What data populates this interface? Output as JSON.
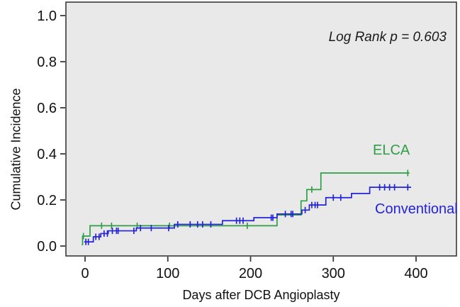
{
  "chart_data": {
    "type": "line",
    "subtype": "kaplan-meier-cumulative-incidence-step",
    "title": "",
    "annotation": "Log Rank p = 0.603",
    "xlabel": "Days after DCB Angioplasty",
    "ylabel": "Cumulative Incidence",
    "x_ticks": [
      0,
      100,
      200,
      300,
      400
    ],
    "y_ticks": [
      "0.0",
      "0.2",
      "0.4",
      "0.6",
      "0.8",
      "1.0"
    ],
    "xlim": [
      -23,
      449
    ],
    "ylim": [
      -0.043,
      1.058
    ],
    "grid": false,
    "legend_position": "inline-labels-right",
    "colors": {
      "plot_background": "#e9e9e9",
      "frame": "#3a3a3a",
      "tick_text": "#111111",
      "elca_green": "#2f9e44",
      "conventional_blue": "#2323d9"
    },
    "series": [
      {
        "name": "ELCA",
        "color": "#2f9e44",
        "steps": [
          [
            -4,
            0.006
          ],
          [
            -3,
            0.043
          ],
          [
            6,
            0.088
          ],
          [
            232,
            0.135
          ],
          [
            261,
            0.196
          ],
          [
            268,
            0.245
          ],
          [
            285,
            0.317
          ],
          [
            392,
            0.317
          ]
        ],
        "censors": [
          [
            -2,
            0.043
          ],
          [
            20,
            0.088
          ],
          [
            32,
            0.088
          ],
          [
            63,
            0.088
          ],
          [
            102,
            0.088
          ],
          [
            196,
            0.088
          ],
          [
            274,
            0.245
          ],
          [
            390,
            0.317
          ]
        ]
      },
      {
        "name": "Conventional",
        "color": "#2323d9",
        "steps": [
          [
            -1,
            0.018
          ],
          [
            10,
            0.04
          ],
          [
            19,
            0.054
          ],
          [
            28,
            0.066
          ],
          [
            62,
            0.078
          ],
          [
            108,
            0.094
          ],
          [
            166,
            0.11
          ],
          [
            204,
            0.123
          ],
          [
            232,
            0.139
          ],
          [
            262,
            0.156
          ],
          [
            271,
            0.178
          ],
          [
            291,
            0.21
          ],
          [
            322,
            0.228
          ],
          [
            344,
            0.255
          ],
          [
            394,
            0.255
          ]
        ],
        "censors": [
          [
            1,
            0.018
          ],
          [
            4,
            0.018
          ],
          [
            13,
            0.04
          ],
          [
            17,
            0.04
          ],
          [
            23,
            0.054
          ],
          [
            27,
            0.054
          ],
          [
            33,
            0.066
          ],
          [
            38,
            0.066
          ],
          [
            40,
            0.066
          ],
          [
            59,
            0.066
          ],
          [
            67,
            0.078
          ],
          [
            80,
            0.078
          ],
          [
            101,
            0.078
          ],
          [
            112,
            0.094
          ],
          [
            127,
            0.094
          ],
          [
            136,
            0.094
          ],
          [
            142,
            0.094
          ],
          [
            152,
            0.094
          ],
          [
            183,
            0.11
          ],
          [
            187,
            0.11
          ],
          [
            191,
            0.11
          ],
          [
            225,
            0.123
          ],
          [
            227,
            0.123
          ],
          [
            242,
            0.139
          ],
          [
            249,
            0.139
          ],
          [
            251,
            0.139
          ],
          [
            266,
            0.156
          ],
          [
            274,
            0.178
          ],
          [
            278,
            0.178
          ],
          [
            281,
            0.178
          ],
          [
            300,
            0.21
          ],
          [
            309,
            0.21
          ],
          [
            356,
            0.255
          ],
          [
            362,
            0.255
          ],
          [
            368,
            0.255
          ],
          [
            374,
            0.255
          ],
          [
            390,
            0.255
          ]
        ]
      }
    ]
  }
}
